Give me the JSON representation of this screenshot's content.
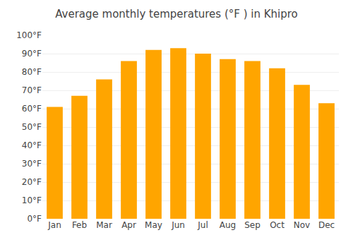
{
  "chart_data": {
    "type": "bar",
    "title": "Average monthly temperatures (°F ) in Khipro",
    "categories": [
      "Jan",
      "Feb",
      "Mar",
      "Apr",
      "May",
      "Jun",
      "Jul",
      "Aug",
      "Sep",
      "Oct",
      "Nov",
      "Dec"
    ],
    "values": [
      61,
      67,
      76,
      86,
      92,
      93,
      90,
      87,
      86,
      82,
      73,
      63
    ],
    "color": "#FFA500",
    "ylim": [
      0,
      100
    ],
    "yticks": [
      {
        "value": 0,
        "label": "0°F"
      },
      {
        "value": 10,
        "label": "10°F"
      },
      {
        "value": 20,
        "label": "20°F"
      },
      {
        "value": 30,
        "label": "30°F"
      },
      {
        "value": 40,
        "label": "40°F"
      },
      {
        "value": 50,
        "label": "50°F"
      },
      {
        "value": 60,
        "label": "60°F"
      },
      {
        "value": 70,
        "label": "70°F"
      },
      {
        "value": 80,
        "label": "80°F"
      },
      {
        "value": 90,
        "label": "90°F"
      },
      {
        "value": 100,
        "label": "100°F"
      }
    ],
    "grid": true
  }
}
